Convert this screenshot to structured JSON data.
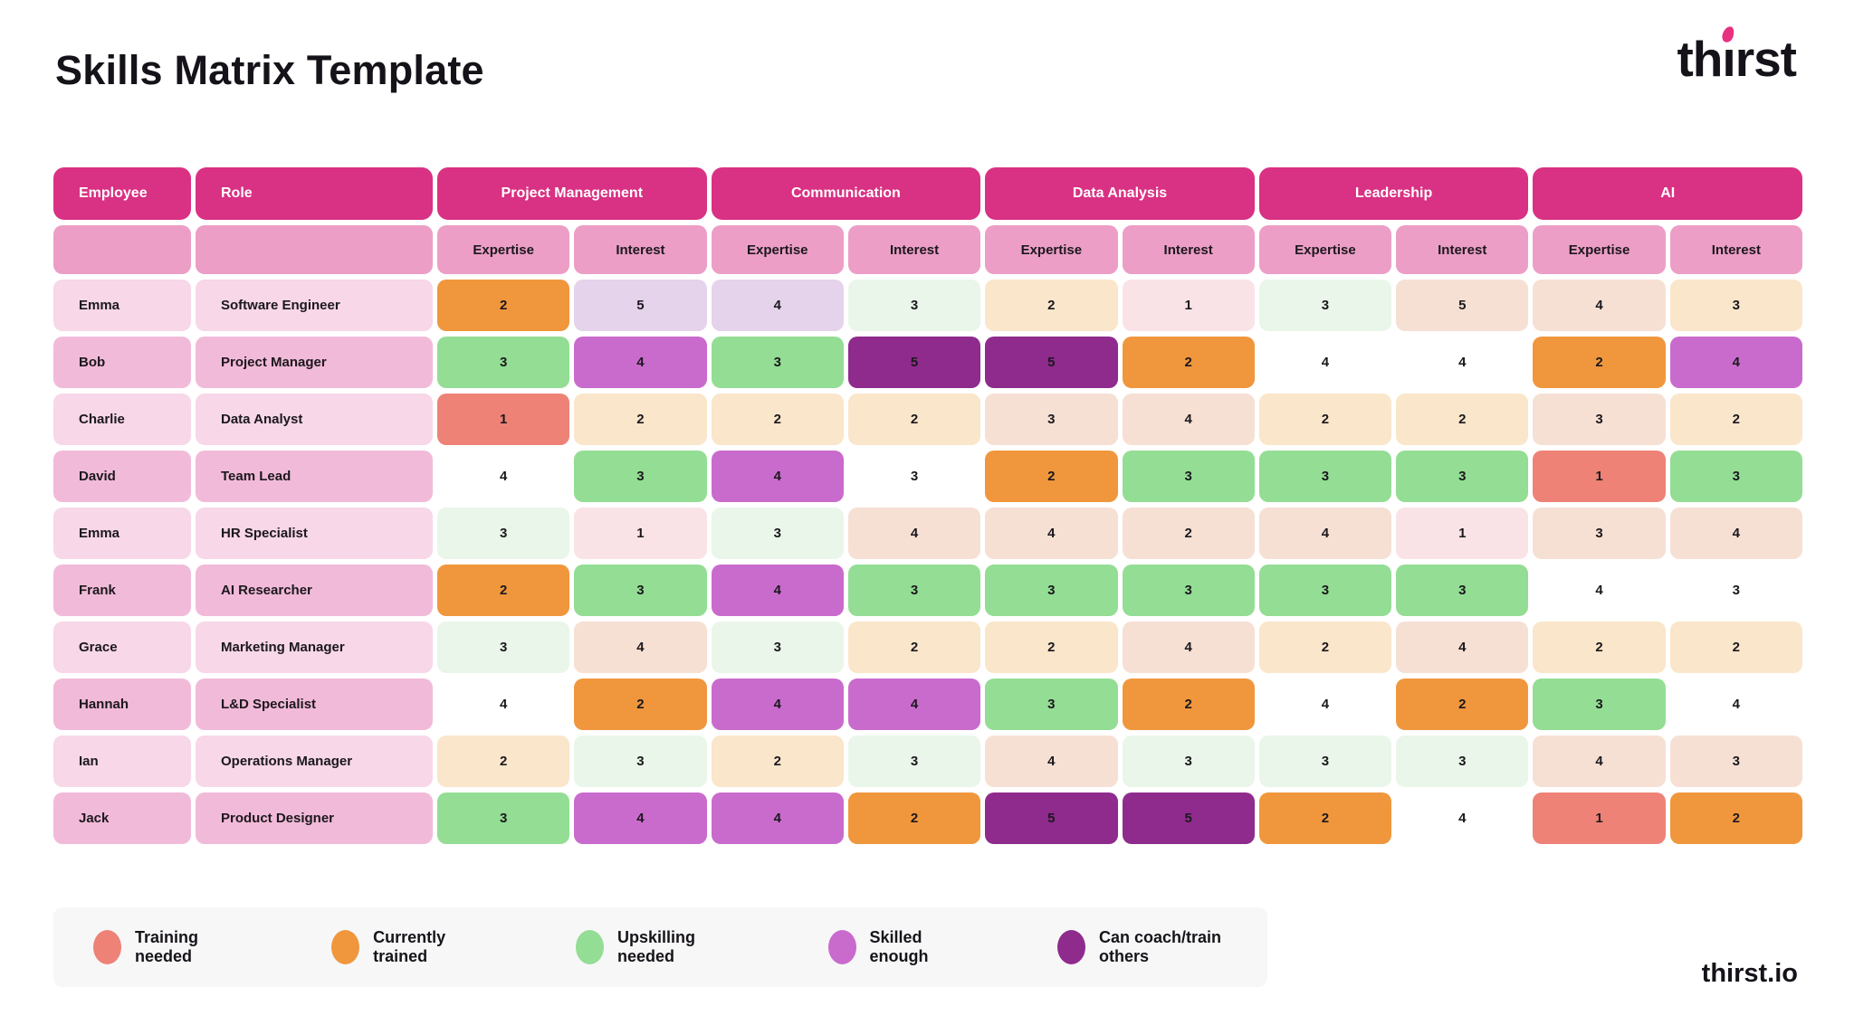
{
  "page": {
    "title": "Skills Matrix Template",
    "footer_brand": "thirst.io"
  },
  "brand": {
    "prefix": "th",
    "dotless_i": "ı",
    "suffix": "rst",
    "accent": "#E73180"
  },
  "palette": {
    "header": "#D93183",
    "subheader": "#EC9EC6",
    "rowLight": "#F7D7E8",
    "rowDark": "#F2BAD9",
    "legendBg": "#F7F7F8",
    "salmon": "#EE8277",
    "orange": "#F0973D",
    "green": "#94DD94",
    "orchid": "#C96BCD",
    "purple": "#8F2B8D",
    "cream": "#FAE6CA",
    "peach": "#F6E0D4",
    "lightgreen": "#E9F6E9",
    "lightpink": "#FAE3E7",
    "lavender": "#E4D3EA",
    "white": "#FFFFFF"
  },
  "chart_data": {
    "type": "table",
    "title": "Skills Matrix Template",
    "corner_headers": [
      "Employee",
      "Role"
    ],
    "categories": [
      "Project Management",
      "Communication",
      "Data Analysis",
      "Leadership",
      "AI"
    ],
    "subcolumns": [
      "Expertise",
      "Interest"
    ],
    "rows": [
      {
        "employee": "Emma",
        "role": "Software Engineer",
        "cells": [
          {
            "v": 2,
            "c": "orange"
          },
          {
            "v": 5,
            "c": "lavender"
          },
          {
            "v": 4,
            "c": "lavender"
          },
          {
            "v": 3,
            "c": "lightgreen"
          },
          {
            "v": 2,
            "c": "cream"
          },
          {
            "v": 1,
            "c": "lightpink"
          },
          {
            "v": 3,
            "c": "lightgreen"
          },
          {
            "v": 5,
            "c": "peach"
          },
          {
            "v": 4,
            "c": "peach"
          },
          {
            "v": 3,
            "c": "cream"
          }
        ]
      },
      {
        "employee": "Bob",
        "role": "Project Manager",
        "cells": [
          {
            "v": 3,
            "c": "green"
          },
          {
            "v": 4,
            "c": "orchid"
          },
          {
            "v": 3,
            "c": "green"
          },
          {
            "v": 5,
            "c": "purple"
          },
          {
            "v": 5,
            "c": "purple"
          },
          {
            "v": 2,
            "c": "orange"
          },
          {
            "v": 4,
            "c": "white"
          },
          {
            "v": 4,
            "c": "white"
          },
          {
            "v": 2,
            "c": "orange"
          },
          {
            "v": 4,
            "c": "orchid"
          }
        ]
      },
      {
        "employee": "Charlie",
        "role": "Data Analyst",
        "cells": [
          {
            "v": 1,
            "c": "salmon"
          },
          {
            "v": 2,
            "c": "cream"
          },
          {
            "v": 2,
            "c": "cream"
          },
          {
            "v": 2,
            "c": "cream"
          },
          {
            "v": 3,
            "c": "peach"
          },
          {
            "v": 4,
            "c": "peach"
          },
          {
            "v": 2,
            "c": "cream"
          },
          {
            "v": 2,
            "c": "cream"
          },
          {
            "v": 3,
            "c": "peach"
          },
          {
            "v": 2,
            "c": "cream"
          }
        ]
      },
      {
        "employee": "David",
        "role": "Team Lead",
        "cells": [
          {
            "v": 4,
            "c": "white"
          },
          {
            "v": 3,
            "c": "green"
          },
          {
            "v": 4,
            "c": "orchid"
          },
          {
            "v": 3,
            "c": "white"
          },
          {
            "v": 2,
            "c": "orange"
          },
          {
            "v": 3,
            "c": "green"
          },
          {
            "v": 3,
            "c": "green"
          },
          {
            "v": 3,
            "c": "green"
          },
          {
            "v": 1,
            "c": "salmon"
          },
          {
            "v": 3,
            "c": "green"
          }
        ]
      },
      {
        "employee": "Emma",
        "role": "HR Specialist",
        "cells": [
          {
            "v": 3,
            "c": "lightgreen"
          },
          {
            "v": 1,
            "c": "lightpink"
          },
          {
            "v": 3,
            "c": "lightgreen"
          },
          {
            "v": 4,
            "c": "peach"
          },
          {
            "v": 4,
            "c": "peach"
          },
          {
            "v": 2,
            "c": "peach"
          },
          {
            "v": 4,
            "c": "peach"
          },
          {
            "v": 1,
            "c": "lightpink"
          },
          {
            "v": 3,
            "c": "peach"
          },
          {
            "v": 4,
            "c": "peach"
          }
        ]
      },
      {
        "employee": "Frank",
        "role": "AI Researcher",
        "cells": [
          {
            "v": 2,
            "c": "orange"
          },
          {
            "v": 3,
            "c": "green"
          },
          {
            "v": 4,
            "c": "orchid"
          },
          {
            "v": 3,
            "c": "green"
          },
          {
            "v": 3,
            "c": "green"
          },
          {
            "v": 3,
            "c": "green"
          },
          {
            "v": 3,
            "c": "green"
          },
          {
            "v": 3,
            "c": "green"
          },
          {
            "v": 4,
            "c": "white"
          },
          {
            "v": 3,
            "c": "white"
          }
        ]
      },
      {
        "employee": "Grace",
        "role": "Marketing Manager",
        "cells": [
          {
            "v": 3,
            "c": "lightgreen"
          },
          {
            "v": 4,
            "c": "peach"
          },
          {
            "v": 3,
            "c": "lightgreen"
          },
          {
            "v": 2,
            "c": "cream"
          },
          {
            "v": 2,
            "c": "cream"
          },
          {
            "v": 4,
            "c": "peach"
          },
          {
            "v": 2,
            "c": "cream"
          },
          {
            "v": 4,
            "c": "peach"
          },
          {
            "v": 2,
            "c": "cream"
          },
          {
            "v": 2,
            "c": "cream"
          }
        ]
      },
      {
        "employee": "Hannah",
        "role": "L&D Specialist",
        "cells": [
          {
            "v": 4,
            "c": "white"
          },
          {
            "v": 2,
            "c": "orange"
          },
          {
            "v": 4,
            "c": "orchid"
          },
          {
            "v": 4,
            "c": "orchid"
          },
          {
            "v": 3,
            "c": "green"
          },
          {
            "v": 2,
            "c": "orange"
          },
          {
            "v": 4,
            "c": "white"
          },
          {
            "v": 2,
            "c": "orange"
          },
          {
            "v": 3,
            "c": "green"
          },
          {
            "v": 4,
            "c": "white"
          }
        ]
      },
      {
        "employee": "Ian",
        "role": "Operations Manager",
        "cells": [
          {
            "v": 2,
            "c": "cream"
          },
          {
            "v": 3,
            "c": "lightgreen"
          },
          {
            "v": 2,
            "c": "cream"
          },
          {
            "v": 3,
            "c": "lightgreen"
          },
          {
            "v": 4,
            "c": "peach"
          },
          {
            "v": 3,
            "c": "lightgreen"
          },
          {
            "v": 3,
            "c": "lightgreen"
          },
          {
            "v": 3,
            "c": "lightgreen"
          },
          {
            "v": 4,
            "c": "peach"
          },
          {
            "v": 3,
            "c": "peach"
          }
        ]
      },
      {
        "employee": "Jack",
        "role": "Product Designer",
        "cells": [
          {
            "v": 3,
            "c": "green"
          },
          {
            "v": 4,
            "c": "orchid"
          },
          {
            "v": 4,
            "c": "orchid"
          },
          {
            "v": 2,
            "c": "orange"
          },
          {
            "v": 5,
            "c": "purple"
          },
          {
            "v": 5,
            "c": "purple"
          },
          {
            "v": 2,
            "c": "orange"
          },
          {
            "v": 4,
            "c": "white"
          },
          {
            "v": 1,
            "c": "salmon"
          },
          {
            "v": 2,
            "c": "orange"
          }
        ]
      }
    ],
    "legend": [
      {
        "label": "Training needed",
        "color": "salmon"
      },
      {
        "label": "Currently trained",
        "color": "orange"
      },
      {
        "label": "Upskilling needed",
        "color": "green"
      },
      {
        "label": "Skilled enough",
        "color": "orchid"
      },
      {
        "label": "Can coach/train others",
        "color": "purple"
      }
    ]
  }
}
